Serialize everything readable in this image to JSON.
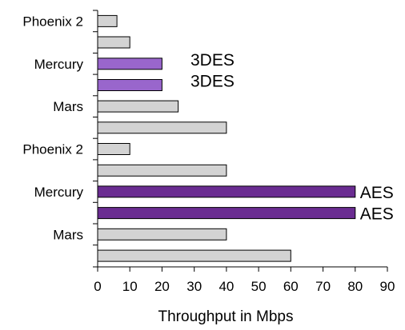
{
  "chart_data": {
    "type": "bar",
    "orientation": "horizontal",
    "title": "",
    "xlabel": "Throughput in Mbps",
    "ylabel": "",
    "xlim": [
      0,
      90
    ],
    "x_ticks": [
      0,
      10,
      20,
      30,
      40,
      50,
      60,
      70,
      80,
      90
    ],
    "grid": false,
    "legend": "none",
    "bars": [
      {
        "category_label": "Phoenix 2",
        "value": 6,
        "color": "#d3d3d3",
        "annotation": ""
      },
      {
        "category_label": "",
        "value": 10,
        "color": "#d3d3d3",
        "annotation": ""
      },
      {
        "category_label": "Mercury",
        "value": 20,
        "color": "#9966cc",
        "annotation": "3DES"
      },
      {
        "category_label": "",
        "value": 20,
        "color": "#9966cc",
        "annotation": "3DES"
      },
      {
        "category_label": "Mars",
        "value": 25,
        "color": "#d3d3d3",
        "annotation": ""
      },
      {
        "category_label": "",
        "value": 40,
        "color": "#d3d3d3",
        "annotation": ""
      },
      {
        "category_label": "Phoenix 2",
        "value": 10,
        "color": "#d3d3d3",
        "annotation": ""
      },
      {
        "category_label": "",
        "value": 40,
        "color": "#d3d3d3",
        "annotation": ""
      },
      {
        "category_label": "Mercury",
        "value": 80,
        "color": "#6a2c91",
        "annotation": "AES"
      },
      {
        "category_label": "",
        "value": 80,
        "color": "#6a2c91",
        "annotation": "AES"
      },
      {
        "category_label": "Mars",
        "value": 40,
        "color": "#d3d3d3",
        "annotation": ""
      },
      {
        "category_label": "",
        "value": 60,
        "color": "#d3d3d3",
        "annotation": ""
      }
    ]
  }
}
